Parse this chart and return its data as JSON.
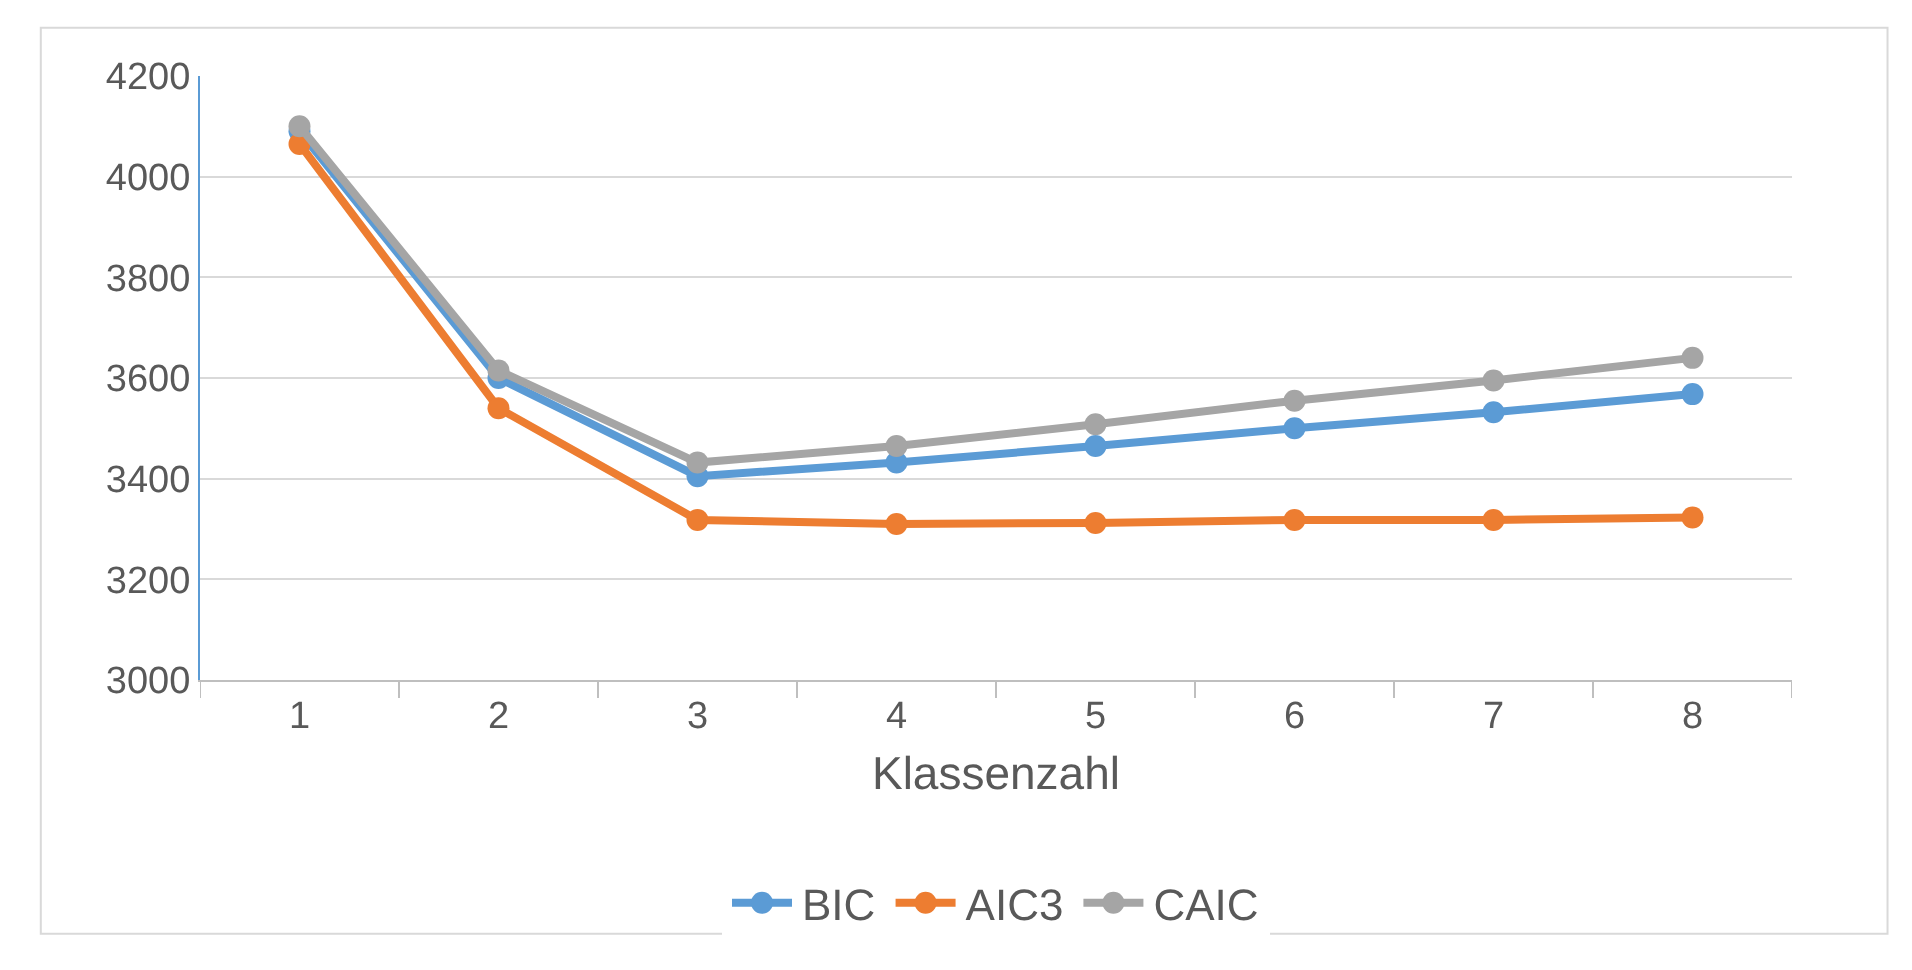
{
  "chart_data": {
    "type": "line",
    "xlabel": "Klassenzahl",
    "categories": [
      "1",
      "2",
      "3",
      "4",
      "5",
      "6",
      "7",
      "8"
    ],
    "series": [
      {
        "name": "BIC",
        "color": "#5b9bd5",
        "values": [
          4090,
          3600,
          3405,
          3432,
          3465,
          3500,
          3532,
          3568
        ]
      },
      {
        "name": "AIC3",
        "color": "#ed7d31",
        "values": [
          4065,
          3540,
          3318,
          3310,
          3312,
          3318,
          3318,
          3323
        ]
      },
      {
        "name": "CAIC",
        "color": "#a5a5a5",
        "values": [
          4100,
          3615,
          3432,
          3465,
          3508,
          3555,
          3595,
          3640
        ]
      }
    ],
    "ylim": [
      3000,
      4200
    ],
    "yticks": [
      3000,
      3200,
      3400,
      3600,
      3800,
      4000,
      4200
    ],
    "grid": "y",
    "legend": "bottom",
    "marker": "circle",
    "line_style": "solid"
  }
}
